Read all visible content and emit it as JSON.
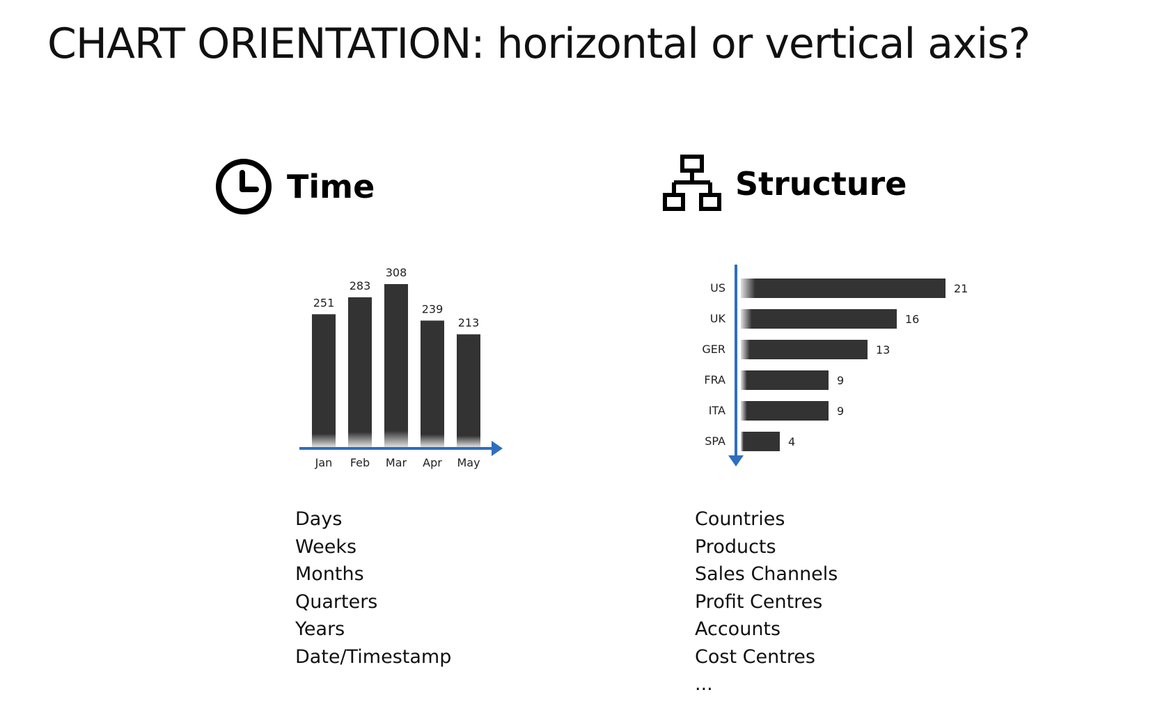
{
  "title": "CHART ORIENTATION: horizontal or vertical axis?",
  "colors": {
    "bar": "#333333",
    "axis": "#2e6fbe",
    "text": "#111111"
  },
  "time": {
    "heading": "Time",
    "icon": "clock-icon",
    "items": [
      "Days",
      "Weeks",
      "Months",
      "Quarters",
      "Years",
      "Date/Timestamp"
    ]
  },
  "structure": {
    "heading": "Structure",
    "icon": "hierarchy-icon",
    "items": [
      "Countries",
      "Products",
      "Sales Channels",
      "Profit Centres",
      "Accounts",
      "Cost Centres",
      "..."
    ]
  },
  "chart_data": [
    {
      "type": "bar",
      "orientation": "vertical",
      "categories": [
        "Jan",
        "Feb",
        "Mar",
        "Apr",
        "May"
      ],
      "values": [
        251,
        283,
        308,
        239,
        213
      ],
      "title": "",
      "xlabel": "",
      "ylabel": "",
      "ylim": [
        0,
        308
      ],
      "grid": false
    },
    {
      "type": "bar",
      "orientation": "horizontal",
      "categories": [
        "US",
        "UK",
        "GER",
        "FRA",
        "ITA",
        "SPA"
      ],
      "values": [
        21,
        16,
        13,
        9,
        9,
        4
      ],
      "title": "",
      "xlabel": "",
      "ylabel": "",
      "xlim": [
        0,
        21
      ],
      "grid": false
    }
  ]
}
